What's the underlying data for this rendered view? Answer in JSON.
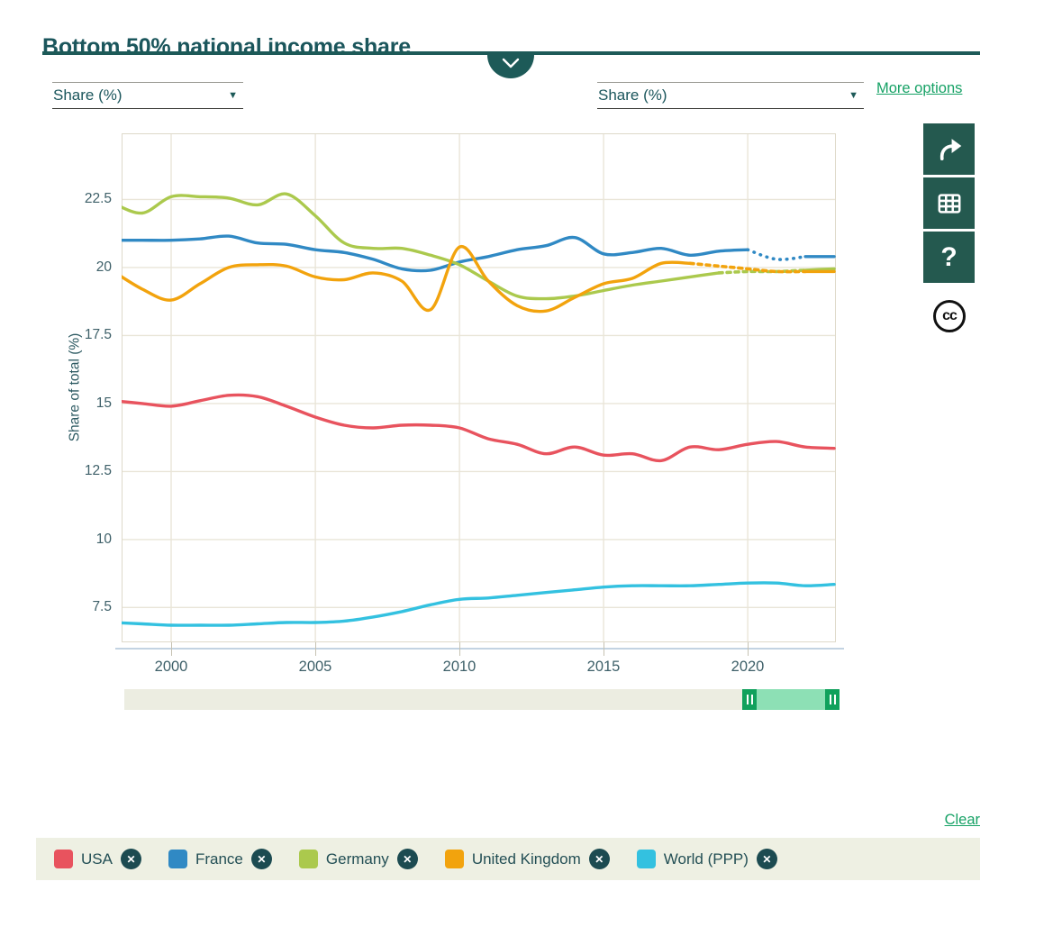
{
  "header": {
    "title": "Bottom 50% national income share"
  },
  "controls": {
    "left_dropdown_value": "Share (%)",
    "right_dropdown_value": "Share (%)",
    "dropdown_arrow": "▼",
    "more_options_label": "More options",
    "clear_label": "Clear"
  },
  "toolbar": {
    "help_glyph": "?",
    "cc_glyph": "cc"
  },
  "legend": {
    "remove_glyph": "✕"
  },
  "slider": {
    "selected_start": 2019.7,
    "selected_end": 2023.06
  },
  "chart_data": {
    "type": "line",
    "title": "Bottom 50% national income share",
    "ylabel": "Share of total (%)",
    "xlim": [
      1998.28,
      2023.06
    ],
    "ylim": [
      6.22,
      24.93
    ],
    "x_ticks": [
      2000,
      2005,
      2010,
      2015,
      2020
    ],
    "y_ticks": [
      7.5,
      10,
      12.5,
      15,
      17.5,
      20,
      22.5
    ],
    "grid": true,
    "legend_position": "bottom",
    "x_start_year": 1998,
    "series": [
      {
        "name": "USA",
        "color": "#e8535e",
        "values": [
          15.1,
          15.0,
          14.9,
          15.1,
          15.3,
          15.25,
          14.9,
          14.5,
          14.2,
          14.1,
          14.2,
          14.2,
          14.1,
          13.7,
          13.5,
          13.15,
          13.4,
          13.1,
          13.15,
          12.9,
          13.4,
          13.3,
          13.5,
          13.6,
          13.4,
          13.35
        ]
      },
      {
        "name": "France",
        "color": "#3089c4",
        "dotted": [
          2020,
          2022
        ],
        "dot_style": "dot",
        "values": [
          21.0,
          21.0,
          21.0,
          21.05,
          21.15,
          20.9,
          20.85,
          20.65,
          20.55,
          20.3,
          19.95,
          19.9,
          20.2,
          20.4,
          20.65,
          20.8,
          21.1,
          20.5,
          20.55,
          20.7,
          20.45,
          20.6,
          20.65,
          20.3,
          20.4,
          20.4
        ]
      },
      {
        "name": "Germany",
        "color": "#abc94d",
        "dotted": [
          2019,
          2022
        ],
        "dot_style": "dash",
        "values": [
          22.35,
          22.0,
          22.6,
          22.6,
          22.55,
          22.3,
          22.7,
          21.9,
          20.9,
          20.7,
          20.7,
          20.45,
          20.1,
          19.5,
          18.95,
          18.85,
          18.95,
          19.15,
          19.35,
          19.5,
          19.65,
          19.8,
          19.85,
          19.85,
          19.9,
          19.95
        ]
      },
      {
        "name": "United Kingdom",
        "color": "#f2a30d",
        "dotted": [
          2018,
          2022
        ],
        "dot_style": "dash",
        "values": [
          19.85,
          19.2,
          18.8,
          19.4,
          20.0,
          20.1,
          20.05,
          19.65,
          19.55,
          19.8,
          19.5,
          18.45,
          20.75,
          19.5,
          18.6,
          18.4,
          18.9,
          19.4,
          19.6,
          20.15,
          20.15,
          20.05,
          19.95,
          19.85,
          19.85,
          19.85
        ]
      },
      {
        "name": "World (PPP)",
        "color": "#33c1e0",
        "values": [
          6.95,
          6.9,
          6.85,
          6.85,
          6.85,
          6.9,
          6.95,
          6.95,
          7.0,
          7.15,
          7.35,
          7.6,
          7.8,
          7.85,
          7.95,
          8.05,
          8.15,
          8.25,
          8.3,
          8.3,
          8.3,
          8.35,
          8.4,
          8.4,
          8.3,
          8.35
        ]
      }
    ]
  }
}
